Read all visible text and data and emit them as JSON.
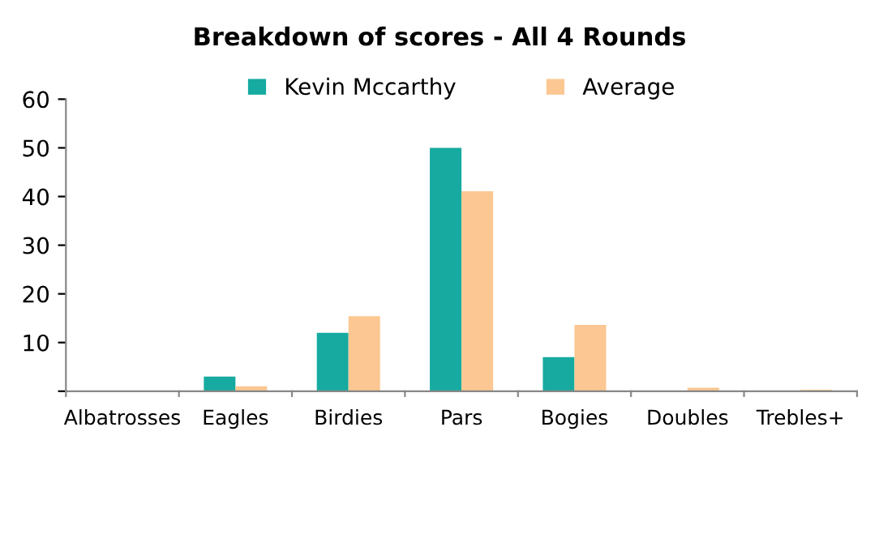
{
  "chart_data": {
    "type": "bar",
    "title": "Breakdown of scores - All 4 Rounds",
    "categories": [
      "Albatrosses",
      "Eagles",
      "Birdies",
      "Pars",
      "Bogies",
      "Doubles",
      "Trebles+"
    ],
    "series": [
      {
        "name": "Kevin Mccarthy",
        "color": "#16aaa0",
        "values": [
          0,
          3,
          12,
          50,
          7,
          0,
          0
        ]
      },
      {
        "name": "Average",
        "color": "#fcc792",
        "values": [
          0,
          1,
          15.4,
          41.1,
          13.6,
          0.7,
          0.3
        ]
      }
    ],
    "ylim": [
      0,
      60
    ],
    "yticks": [
      {
        "value": 0,
        "label": null
      },
      10,
      20,
      30,
      40,
      50,
      60
    ],
    "grid": false,
    "legend": "top"
  }
}
